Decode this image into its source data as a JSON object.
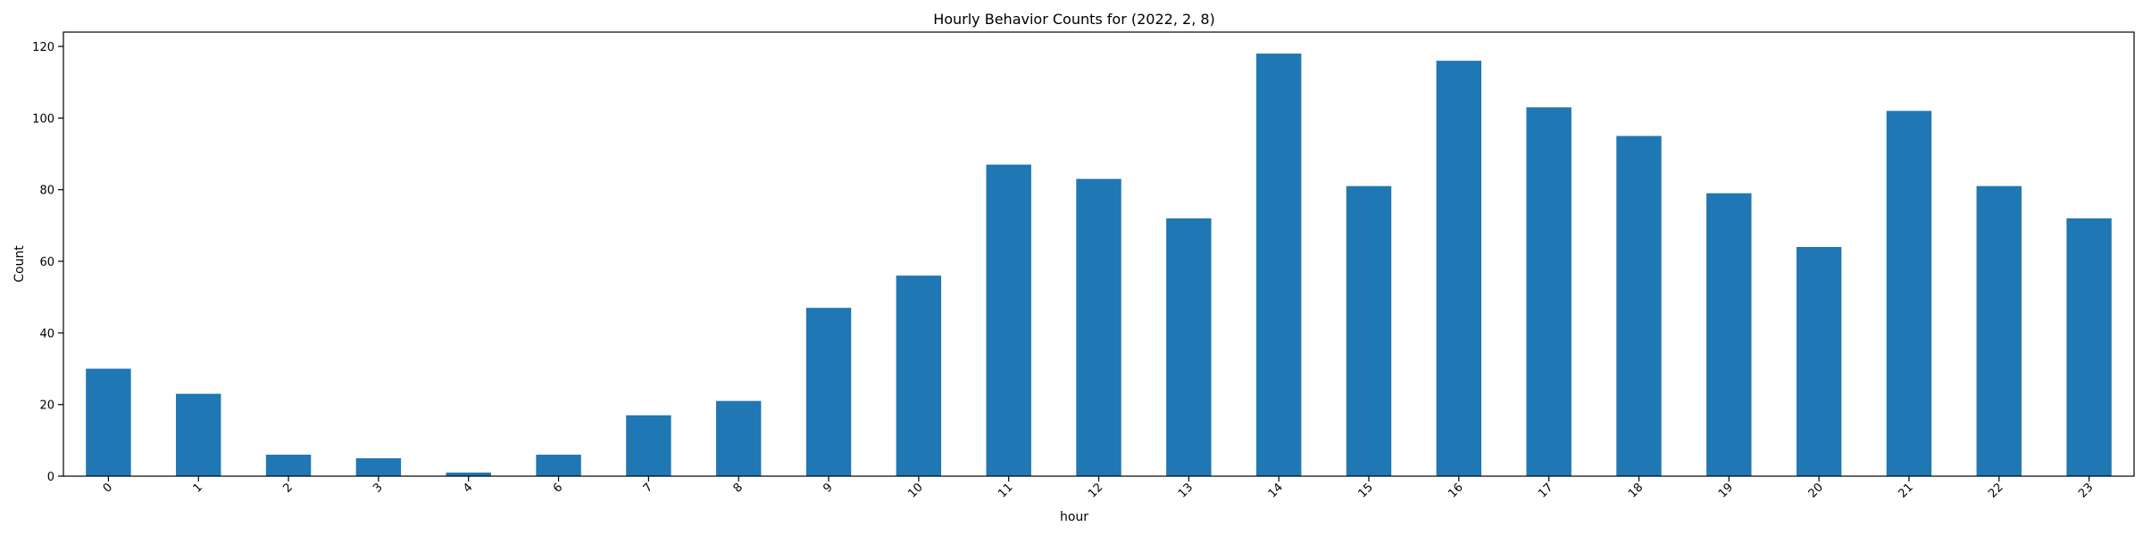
{
  "chart_data": {
    "type": "bar",
    "title": "Hourly Behavior Counts for (2022, 2, 8)",
    "xlabel": "hour",
    "ylabel": "Count",
    "categories": [
      "0",
      "1",
      "2",
      "3",
      "4",
      "6",
      "7",
      "8",
      "9",
      "10",
      "11",
      "12",
      "13",
      "14",
      "15",
      "16",
      "17",
      "18",
      "19",
      "20",
      "21",
      "22",
      "23"
    ],
    "values": [
      30,
      23,
      6,
      5,
      1,
      6,
      17,
      21,
      47,
      56,
      87,
      83,
      72,
      118,
      81,
      116,
      103,
      95,
      79,
      64,
      102,
      81,
      72
    ],
    "ylim": [
      0,
      124
    ],
    "yticks": [
      "0",
      "20",
      "40",
      "60",
      "80",
      "100",
      "120"
    ],
    "xtick_rotation": 45,
    "grid": false,
    "legend": "none",
    "bar_color": "#1f77b4"
  }
}
